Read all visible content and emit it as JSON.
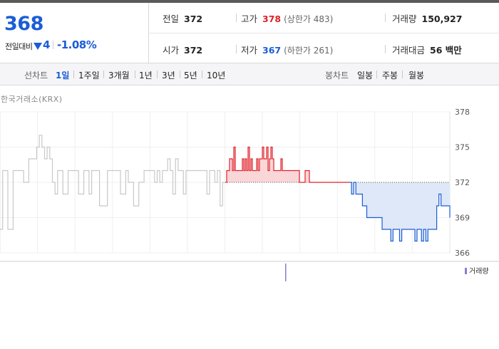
{
  "summary": {
    "current_price": "368",
    "change_label": "전일대비",
    "change_amount": "4",
    "change_rate": "-1.08%",
    "prev_close": {
      "label": "전일",
      "value": "372"
    },
    "open": {
      "label": "시가",
      "value": "372"
    },
    "high": {
      "label": "고가",
      "value": "378",
      "sub": "(상한가 483)"
    },
    "low": {
      "label": "저가",
      "value": "367",
      "sub": "(하한가 261)"
    },
    "volume": {
      "label": "거래량",
      "value": "150,927"
    },
    "trade_value": {
      "label": "거래대금",
      "value": "56 백만"
    }
  },
  "tabs": {
    "line_label": "선차트",
    "line_items": [
      "1일",
      "1주일",
      "3개월",
      "1년",
      "3년",
      "5년",
      "10년"
    ],
    "active": "1일",
    "candle_label": "봉차트",
    "candle_items": [
      "일봉",
      "주봉",
      "월봉"
    ]
  },
  "source": "한국거래소(KRX)",
  "volume_legend": "거래량",
  "colors": {
    "accent_blue": "#1a5dd6",
    "up_red": "#e0222a",
    "down_blue": "#1a5dd6",
    "prior_day_gray": "#c8c8c8",
    "volume_purple": "#8f7ad1"
  },
  "chart_data": {
    "type": "line",
    "title": "",
    "xlabel": "",
    "ylabel": "",
    "ylim": [
      366,
      378
    ],
    "yticks": [
      366,
      369,
      372,
      375,
      378
    ],
    "baseline": 372,
    "grid": true,
    "series": [
      {
        "values": [
          368,
          373,
          373,
          368,
          368,
          373,
          373,
          373,
          373,
          372,
          372,
          374,
          374,
          374,
          375,
          376,
          375,
          374,
          375,
          374,
          372,
          371,
          373,
          373,
          371,
          371,
          373,
          373,
          373,
          373,
          371,
          371,
          373,
          373,
          371,
          373,
          373,
          373,
          370,
          370,
          370,
          373,
          373,
          373,
          373,
          373,
          371,
          371,
          373,
          372,
          372,
          370,
          370,
          372,
          372,
          373,
          373,
          373,
          373,
          372,
          373,
          372,
          373,
          373,
          374,
          373,
          371,
          374,
          373,
          373,
          371,
          373,
          373,
          373,
          373,
          373,
          373,
          373,
          373,
          371,
          373,
          373,
          372,
          373,
          370,
          372,
          372
        ]
      },
      {
        "values": [
          372,
          373,
          373,
          374,
          374,
          373,
          375,
          373,
          373,
          373,
          373,
          373,
          374,
          373,
          374,
          373,
          375,
          373,
          374,
          373,
          373,
          373,
          374,
          373,
          374,
          374,
          375,
          374,
          374,
          375,
          373,
          374,
          375,
          374,
          373,
          373,
          373,
          373,
          373,
          374,
          373,
          373,
          373,
          373,
          373,
          373,
          373,
          373,
          373,
          373,
          373,
          373,
          372,
          372,
          372,
          372,
          373,
          373,
          373,
          372,
          372,
          372,
          372,
          372,
          372,
          372,
          372,
          372,
          372,
          372,
          372,
          372,
          372,
          372,
          372,
          372,
          372,
          372,
          372,
          372,
          372,
          372,
          372,
          372,
          372,
          372,
          372,
          372
        ]
      },
      {
        "values": [
          372,
          371,
          372,
          371,
          371,
          371,
          370,
          370,
          369,
          369,
          369,
          369,
          369,
          369,
          369,
          368,
          368,
          368,
          368,
          367,
          368,
          368,
          368,
          367,
          368,
          368,
          368,
          368,
          368,
          368,
          367,
          368,
          368,
          367,
          368,
          367,
          368,
          368,
          368,
          368,
          370,
          371,
          370,
          370,
          370,
          370,
          369
        ]
      }
    ]
  }
}
